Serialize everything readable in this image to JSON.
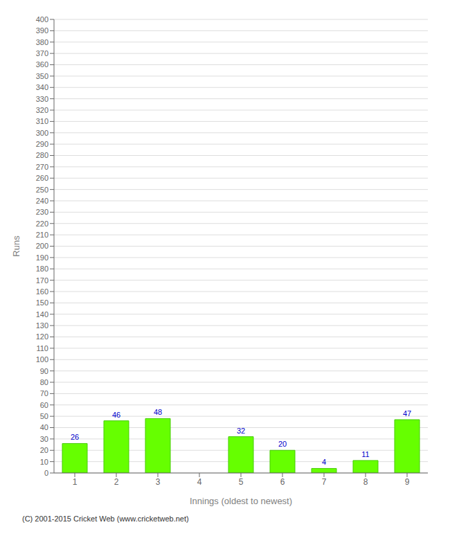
{
  "chart_data": {
    "type": "bar",
    "categories": [
      "1",
      "2",
      "3",
      "4",
      "5",
      "6",
      "7",
      "8",
      "9"
    ],
    "values": [
      26,
      46,
      48,
      0,
      32,
      20,
      4,
      11,
      47
    ],
    "color": "#66ff00",
    "xlabel": "Innings (oldest to newest)",
    "ylabel": "Runs",
    "ylim": [
      0,
      400
    ],
    "yticks": [
      0,
      10,
      20,
      30,
      40,
      50,
      60,
      70,
      80,
      90,
      100,
      110,
      120,
      130,
      140,
      150,
      160,
      170,
      180,
      190,
      200,
      210,
      220,
      230,
      240,
      250,
      260,
      270,
      280,
      290,
      300,
      310,
      320,
      330,
      340,
      350,
      360,
      370,
      380,
      390,
      400
    ],
    "grid": true,
    "data_labels": true,
    "annotations": [
      "(C) 2001-2015 Cricket Web (www.cricketweb.net)"
    ]
  }
}
